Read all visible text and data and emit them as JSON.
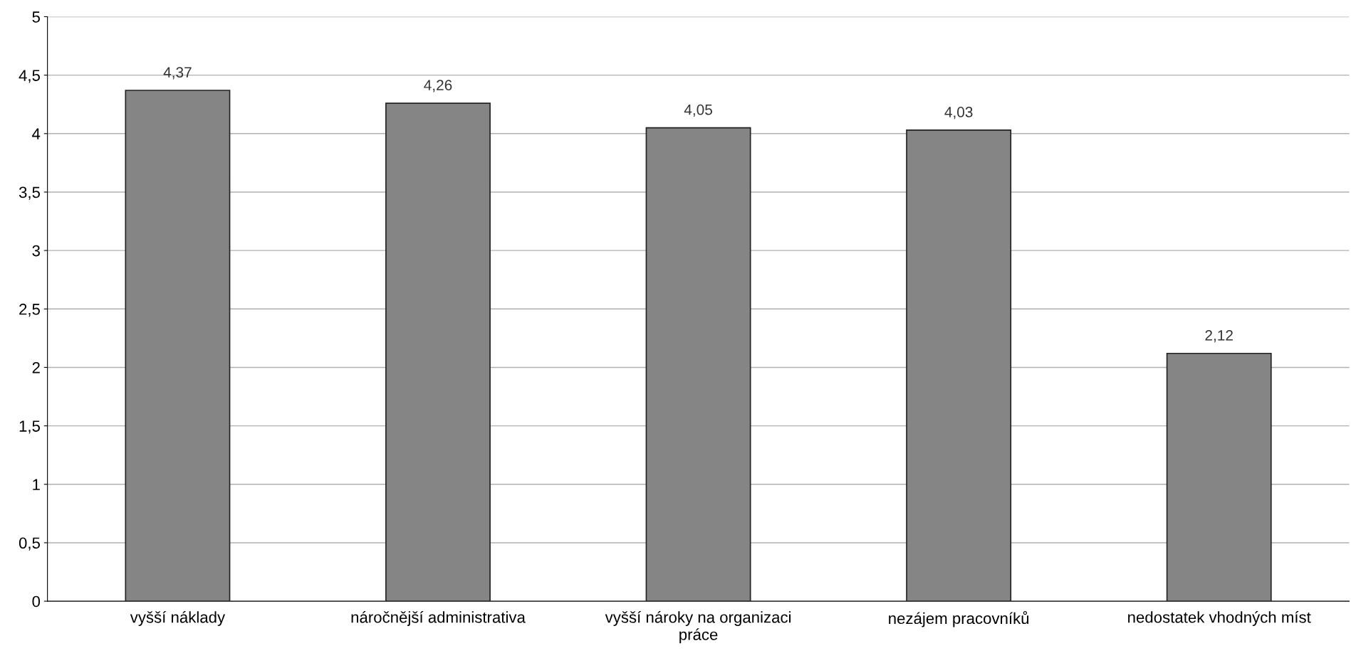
{
  "chart_data": {
    "type": "bar",
    "categories": [
      "vyšší náklady",
      "náročnější administrativa",
      "vyšší nároky na organizaci\npráce",
      "nezájem pracovníků",
      "nedostatek vhodných míst"
    ],
    "values": [
      4.37,
      4.26,
      4.05,
      4.03,
      2.12
    ],
    "value_labels": [
      "4,37",
      "4,26",
      "4,05",
      "4,03",
      "2,12"
    ],
    "color": "#858585",
    "ylim": [
      0,
      5
    ],
    "yticks": [
      0,
      {
        "value": 0.5,
        "label": "0,5"
      },
      1,
      {
        "value": 1.5,
        "label": "1,5"
      },
      2,
      {
        "value": 2.5,
        "label": "2,5"
      },
      3,
      {
        "value": 3.5,
        "label": "3,5"
      },
      4,
      {
        "value": 4.5,
        "label": "4,5"
      },
      5
    ],
    "grid": "y"
  }
}
